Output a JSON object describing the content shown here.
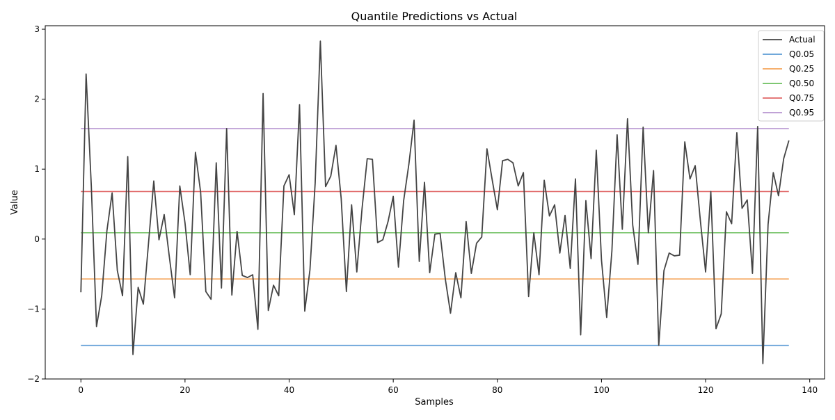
{
  "chart_data": {
    "type": "line",
    "title": "Quantile Predictions vs Actual",
    "xlabel": "Samples",
    "ylabel": "Value",
    "xlim": [
      -6.85,
      142.85
    ],
    "ylim": [
      -2.0,
      3.05
    ],
    "xticks": [
      0,
      20,
      40,
      60,
      80,
      100,
      120,
      140
    ],
    "yticks": [
      -2,
      -1,
      0,
      1,
      2,
      3
    ],
    "xtick_labels": [
      "0",
      "20",
      "40",
      "60",
      "80",
      "100",
      "120",
      "140"
    ],
    "ytick_labels": [
      "−2",
      "−1",
      "0",
      "1",
      "2",
      "3"
    ],
    "grid": false,
    "legend_position": "top-right",
    "series": [
      {
        "name": "Actual",
        "color": "#444444",
        "x_start": 0,
        "values": [
          -0.76,
          2.36,
          0.76,
          -1.25,
          -0.81,
          0.12,
          0.66,
          -0.45,
          -0.81,
          1.18,
          -1.65,
          -0.69,
          -0.93,
          -0.05,
          0.83,
          -0.01,
          0.35,
          -0.26,
          -0.84,
          0.76,
          0.23,
          -0.51,
          1.24,
          0.67,
          -0.75,
          -0.86,
          1.09,
          -0.7,
          1.58,
          -0.8,
          0.11,
          -0.52,
          -0.55,
          -0.51,
          -1.29,
          2.08,
          -1.02,
          -0.66,
          -0.81,
          0.76,
          0.92,
          0.35,
          1.92,
          -1.03,
          -0.44,
          0.8,
          2.83,
          0.75,
          0.9,
          1.34,
          0.58,
          -0.75,
          0.49,
          -0.47,
          0.43,
          1.15,
          1.14,
          -0.05,
          -0.01,
          0.25,
          0.61,
          -0.4,
          0.55,
          1.07,
          1.7,
          -0.32,
          0.81,
          -0.48,
          0.07,
          0.08,
          -0.57,
          -1.06,
          -0.48,
          -0.84,
          0.25,
          -0.49,
          -0.06,
          0.03,
          1.29,
          0.85,
          0.42,
          1.12,
          1.14,
          1.09,
          0.76,
          0.95,
          -0.82,
          0.09,
          -0.51,
          0.84,
          0.33,
          0.49,
          -0.2,
          0.34,
          -0.42,
          0.86,
          -1.37,
          0.55,
          -0.28,
          1.27,
          -0.3,
          -1.12,
          -0.17,
          1.49,
          0.14,
          1.72,
          0.2,
          -0.36,
          1.6,
          0.09,
          0.98,
          -1.52,
          -0.45,
          -0.2,
          -0.24,
          -0.23,
          1.39,
          0.86,
          1.05,
          0.26,
          -0.47,
          0.68,
          -1.28,
          -1.07,
          0.39,
          0.22,
          1.52,
          0.44,
          0.56,
          -0.49,
          1.61,
          -1.78,
          0.21,
          0.95,
          0.62,
          1.15,
          1.41
        ]
      },
      {
        "name": "Q0.05",
        "color": "#5b9bd5",
        "x": [
          0,
          136
        ],
        "values": [
          -1.52,
          -1.52
        ]
      },
      {
        "name": "Q0.25",
        "color": "#f5a55a",
        "x": [
          0,
          136
        ],
        "values": [
          -0.57,
          -0.57
        ]
      },
      {
        "name": "Q0.50",
        "color": "#6cbf5e",
        "x": [
          0,
          136
        ],
        "values": [
          0.09,
          0.09
        ]
      },
      {
        "name": "Q0.75",
        "color": "#e06666",
        "x": [
          0,
          136
        ],
        "values": [
          0.68,
          0.68
        ]
      },
      {
        "name": "Q0.95",
        "color": "#b794d0",
        "x": [
          0,
          136
        ],
        "values": [
          1.58,
          1.58
        ]
      }
    ]
  }
}
